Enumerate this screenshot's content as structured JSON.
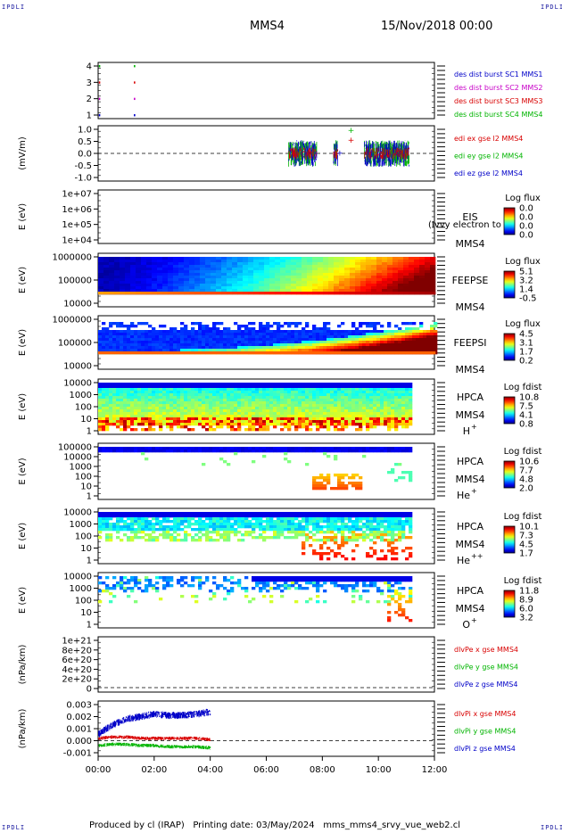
{
  "corners": {
    "tl": "IPDLI",
    "tr": "IPDLI",
    "bl": "IPDLI",
    "br": "IPDLI"
  },
  "header": {
    "mission": "MMS4",
    "datetime": "15/Nov/2018 00:00"
  },
  "footer": {
    "text": "Produced by cl (IRAP)   Printing date: 03/May/2024   mms_mms4_srvy_vue_web2.cl"
  },
  "colors": {
    "blue": "#0000c8",
    "magenta": "#c800c8",
    "red": "#d80000",
    "green": "#00b400",
    "dashed": "#000000"
  },
  "chart_data": [
    {
      "type": "scatter",
      "panel": "burst",
      "y_ticks": [
        "1",
        "2",
        "3",
        "4"
      ],
      "ylim": [
        0.5,
        4.5
      ],
      "series": [
        {
          "name": "des dist burst SC1 MMS1",
          "color": "#0000c8",
          "x": [
            0.05,
            1.3
          ],
          "y": [
            1,
            1
          ]
        },
        {
          "name": "des dist burst SC2 MMS2",
          "color": "#c800c8",
          "x": [
            0.05,
            1.3
          ],
          "y": [
            2,
            2
          ]
        },
        {
          "name": "des dist burst SC3 MMS3",
          "color": "#d80000",
          "x": [
            0.05,
            1.3
          ],
          "y": [
            3,
            3
          ]
        },
        {
          "name": "des dist burst SC4 MMS4",
          "color": "#00b400",
          "x": [
            0.05,
            1.3
          ],
          "y": [
            4,
            4
          ]
        }
      ]
    },
    {
      "type": "line",
      "panel": "edi",
      "ylabel": "(mV/m)",
      "y_ticks": [
        "1.0",
        "0.5",
        "0.0",
        "-0.5",
        "-1.0"
      ],
      "ylim": [
        -1.25,
        1.1
      ],
      "series": [
        {
          "name": "edi ex gse l2 MMS4",
          "color": "#d80000"
        },
        {
          "name": "edi ey gse l2 MMS4",
          "color": "#00b400"
        },
        {
          "name": "edi ez gse l2 MMS4",
          "color": "#0000c8"
        }
      ]
    },
    {
      "type": "heatmap",
      "panel": "eis",
      "ylabel": "E (eV)",
      "y_ticks": [
        "1e+07",
        "1e+06",
        "1e+05",
        "1e+04"
      ],
      "instrument": "EIS",
      "sc": "MMS4",
      "overlay": "(Ivvy electron to",
      "cbar_title": "Log flux",
      "cbar_ticks": [
        "0.0",
        "0.0",
        "0.0",
        "0.0"
      ]
    },
    {
      "type": "heatmap",
      "panel": "feepse",
      "ylabel": "E (eV)",
      "y_ticks": [
        "1000000",
        "100000",
        "10000"
      ],
      "instrument": "FEEPSE",
      "sc": "MMS4",
      "cbar_title": "Log flux",
      "cbar_ticks": [
        "5.1",
        "3.2",
        "1.4",
        "-0.5"
      ]
    },
    {
      "type": "heatmap",
      "panel": "feepsi",
      "ylabel": "E (eV)",
      "y_ticks": [
        "1000000",
        "100000",
        "10000"
      ],
      "instrument": "FEEPSI",
      "sc": "MMS4",
      "cbar_title": "Log flux",
      "cbar_ticks": [
        "4.5",
        "3.1",
        "1.7",
        "0.2"
      ]
    },
    {
      "type": "heatmap",
      "panel": "hpca_h",
      "ylabel": "E (eV)",
      "y_ticks": [
        "10000",
        "1000",
        "100",
        "10",
        "1"
      ],
      "instrument": "HPCA",
      "sc": "MMS4",
      "species": "H",
      "species_sup": "+",
      "cbar_title": "Log fdist",
      "cbar_ticks": [
        "10.8",
        "7.5",
        "4.1",
        "0.8"
      ]
    },
    {
      "type": "heatmap",
      "panel": "hpca_he",
      "ylabel": "E (eV)",
      "y_ticks": [
        "100000",
        "10000",
        "1000",
        "100",
        "10",
        "1"
      ],
      "instrument": "HPCA",
      "sc": "MMS4",
      "species": "He",
      "species_sup": "+",
      "cbar_title": "Log fdist",
      "cbar_ticks": [
        "10.6",
        "7.7",
        "4.8",
        "2.0"
      ]
    },
    {
      "type": "heatmap",
      "panel": "hpca_hepp",
      "ylabel": "E (eV)",
      "y_ticks": [
        "10000",
        "1000",
        "100",
        "10",
        "1"
      ],
      "instrument": "HPCA",
      "sc": "MMS4",
      "species": "He",
      "species_sup": "++",
      "cbar_title": "Log fdist",
      "cbar_ticks": [
        "10.1",
        "7.3",
        "4.5",
        "1.7"
      ]
    },
    {
      "type": "heatmap",
      "panel": "hpca_o",
      "ylabel": "E (eV)",
      "y_ticks": [
        "10000",
        "1000",
        "100",
        "10",
        "1"
      ],
      "instrument": "HPCA",
      "sc": "MMS4",
      "species": "O",
      "species_sup": "+",
      "cbar_title": "Log fdist",
      "cbar_ticks": [
        "11.8",
        "8.9",
        "6.0",
        "3.2"
      ]
    },
    {
      "type": "line",
      "panel": "dlvpe",
      "ylabel": "(nPa/km)",
      "y_ticks": [
        "1e+21",
        "8e+20",
        "6e+20",
        "4e+20",
        "2e+20",
        "0"
      ],
      "ylim": [
        -1e+19,
        1.08e+21
      ],
      "series": [
        {
          "name": "dlvPe x gse MMS4",
          "color": "#d80000"
        },
        {
          "name": "dlvPe y gse MMS4",
          "color": "#00b400"
        },
        {
          "name": "dlvPe z gse MMS4",
          "color": "#0000c8"
        }
      ]
    },
    {
      "type": "line",
      "panel": "dlvpi",
      "ylabel": "(nPa/km)",
      "y_ticks": [
        "0.003",
        "0.002",
        "0.001",
        "0.000",
        "-0.001"
      ],
      "ylim": [
        -0.0016,
        0.0036
      ],
      "xlim_hours": [
        0,
        12
      ],
      "x_ticks": [
        "00:00",
        "02:00",
        "04:00",
        "06:00",
        "08:00",
        "10:00",
        "12:00"
      ],
      "series": [
        {
          "name": "dlvPi x gse MMS4",
          "color": "#d80000",
          "x": [
            0,
            0.5,
            1,
            1.5,
            2,
            2.5,
            3,
            3.5,
            4
          ],
          "y": [
            0.0002,
            0.0003,
            0.0003,
            0.0002,
            0.0002,
            0.0002,
            0.0002,
            0.0002,
            0.0001
          ]
        },
        {
          "name": "dlvPi y gse MMS4",
          "color": "#00b400",
          "x": [
            0,
            0.5,
            1,
            1.5,
            2,
            2.5,
            3,
            3.5,
            4
          ],
          "y": [
            -0.0004,
            -0.0003,
            -0.0003,
            -0.0004,
            -0.0004,
            -0.0005,
            -0.0005,
            -0.0005,
            -0.0006
          ]
        },
        {
          "name": "dlvPi z gse MMS4",
          "color": "#0000c8",
          "x": [
            0,
            0.3,
            0.6,
            1,
            1.5,
            2,
            2.5,
            3,
            3.5,
            4
          ],
          "y": [
            0.0005,
            0.001,
            0.0014,
            0.0018,
            0.002,
            0.0022,
            0.0021,
            0.0021,
            0.0022,
            0.0024
          ]
        }
      ]
    }
  ]
}
